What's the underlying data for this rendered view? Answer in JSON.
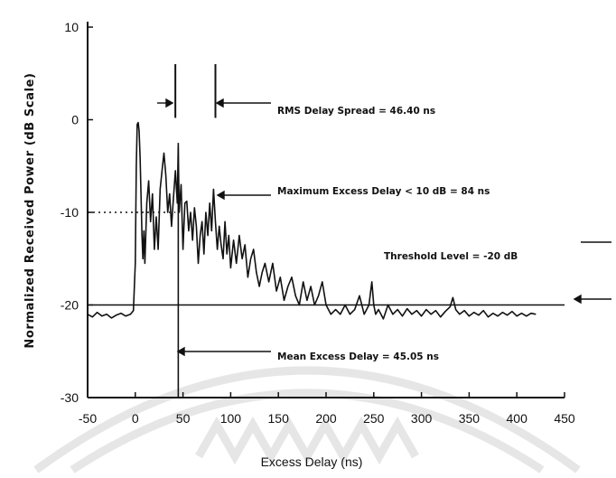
{
  "chart_data": {
    "type": "line",
    "title": "",
    "xlabel": "Excess Delay (ns)",
    "ylabel": "Normalized Received Power (dB Scale)",
    "xlim": [
      -50,
      450
    ],
    "ylim": [
      -30,
      10
    ],
    "xticks": [
      -50,
      0,
      50,
      100,
      150,
      200,
      250,
      300,
      350,
      400,
      450
    ],
    "yticks": [
      10,
      0,
      -10,
      -20,
      -30
    ],
    "grid": false,
    "legend": "none",
    "series": [
      {
        "x": [
          -50,
          -45,
          -40,
          -35,
          -30,
          -25,
          -20,
          -15,
          -10,
          -5,
          -2,
          0,
          1,
          2,
          3,
          4,
          5,
          6,
          7,
          8,
          9,
          10,
          12,
          14,
          16,
          18,
          20,
          22,
          24,
          26,
          28,
          30,
          32,
          34,
          36,
          38,
          40,
          42,
          44,
          45,
          46,
          48,
          50,
          52,
          54,
          56,
          58,
          60,
          62,
          64,
          66,
          68,
          70,
          72,
          74,
          76,
          78,
          80,
          82,
          84,
          86,
          88,
          90,
          92,
          94,
          96,
          98,
          100,
          103,
          106,
          109,
          112,
          115,
          118,
          121,
          124,
          127,
          130,
          133,
          136,
          140,
          144,
          148,
          152,
          156,
          160,
          164,
          168,
          172,
          176,
          180,
          184,
          188,
          192,
          196,
          200,
          205,
          210,
          215,
          220,
          225,
          230,
          235,
          240,
          245,
          248,
          250,
          252,
          255,
          260,
          265,
          270,
          275,
          280,
          285,
          290,
          295,
          300,
          305,
          310,
          315,
          320,
          325,
          330,
          333,
          336,
          340,
          345,
          350,
          355,
          360,
          365,
          370,
          375,
          380,
          385,
          390,
          395,
          400,
          405,
          410,
          415,
          420
        ],
        "values": [
          -21.0,
          -21.3,
          -20.8,
          -21.2,
          -21.0,
          -21.4,
          -21.1,
          -20.9,
          -21.2,
          -21.0,
          -20.6,
          -15.5,
          -5.0,
          -0.5,
          -0.3,
          -1.2,
          -4.0,
          -8.0,
          -12.5,
          -15.0,
          -12.0,
          -15.5,
          -9.0,
          -6.6,
          -11.0,
          -8.0,
          -14.0,
          -10.5,
          -14.0,
          -7.5,
          -5.5,
          -3.6,
          -6.0,
          -10.0,
          -8.0,
          -11.5,
          -8.5,
          -5.5,
          -9.0,
          -2.9,
          -10.0,
          -7.0,
          -14.0,
          -9.0,
          -8.8,
          -12.0,
          -10.0,
          -13.0,
          -9.5,
          -11.5,
          -15.5,
          -12.5,
          -11.0,
          -14.5,
          -10.0,
          -12.5,
          -9.0,
          -12.0,
          -7.5,
          -11.0,
          -14.0,
          -11.5,
          -13.5,
          -15.0,
          -11.0,
          -14.5,
          -12.5,
          -16.0,
          -13.0,
          -15.5,
          -12.5,
          -15.0,
          -13.5,
          -17.0,
          -15.0,
          -14.0,
          -16.5,
          -18.0,
          -16.5,
          -15.5,
          -17.5,
          -15.5,
          -18.5,
          -17.0,
          -19.5,
          -18.0,
          -17.0,
          -19.0,
          -20.0,
          -17.5,
          -19.5,
          -18.0,
          -20.0,
          -19.0,
          -17.5,
          -20.0,
          -21.0,
          -20.5,
          -21.0,
          -20.0,
          -21.0,
          -20.5,
          -19.0,
          -21.0,
          -20.0,
          -17.5,
          -20.0,
          -21.0,
          -20.5,
          -21.5,
          -20.0,
          -21.0,
          -20.5,
          -21.2,
          -20.4,
          -21.0,
          -20.6,
          -21.2,
          -20.5,
          -21.0,
          -20.6,
          -21.3,
          -20.7,
          -20.2,
          -19.2,
          -20.5,
          -21.0,
          -20.6,
          -21.2,
          -20.8,
          -21.1,
          -20.6,
          -21.3,
          -20.9,
          -21.2,
          -20.8,
          -21.1,
          -20.7,
          -21.2,
          -20.9,
          -21.2,
          -20.9,
          -21.0
        ]
      }
    ],
    "reference_lines": [
      {
        "orientation": "horizontal",
        "y": -20,
        "style": "solid"
      },
      {
        "orientation": "horizontal",
        "y": -10,
        "style": "dotted"
      },
      {
        "orientation": "vertical",
        "x": 45.05,
        "style": "solid"
      },
      {
        "orientation": "vertical",
        "x": 42,
        "style": "solid"
      },
      {
        "orientation": "vertical",
        "x": 84,
        "style": "solid"
      }
    ],
    "annotations": [
      {
        "text": "RMS Delay Spread = 46.40 ns"
      },
      {
        "text": "Maximum Excess Delay < 10 dB = 84 ns"
      },
      {
        "text": "Threshold Level = -20 dB"
      },
      {
        "text": "Mean Excess Delay = 45.05 ns"
      }
    ]
  }
}
